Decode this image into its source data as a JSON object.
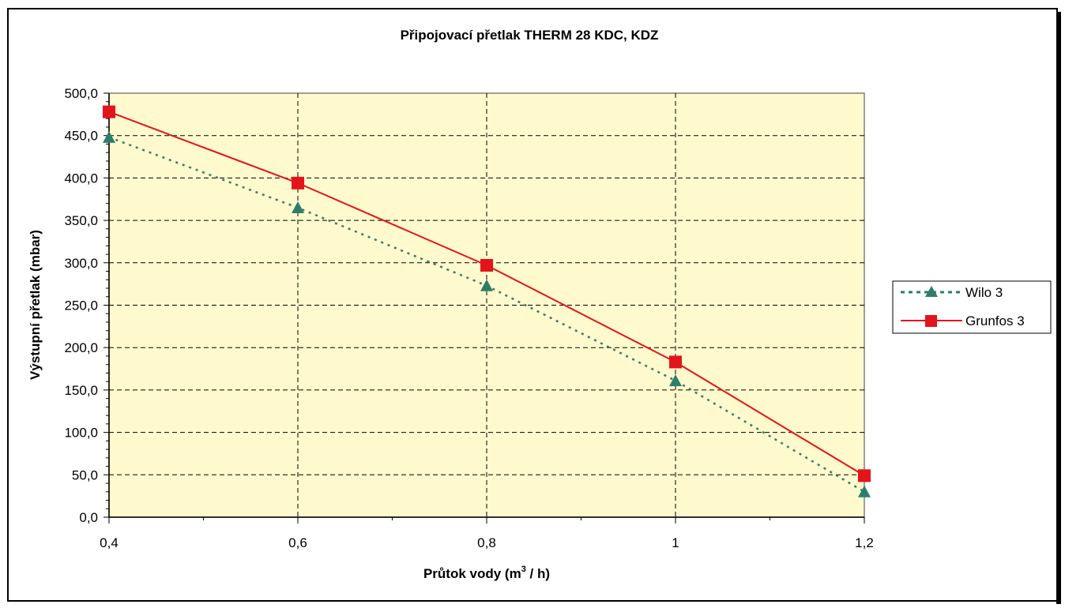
{
  "chart_data": {
    "type": "line",
    "title": "Připojovací přetlak THERM 28 KDC, KDZ",
    "xlabel_main": "Průtok vody (m",
    "xlabel_sup": "3",
    "xlabel_tail": " / h)",
    "ylabel": "Výstupní přetlak (mbar)",
    "x": [
      0.4,
      0.6,
      0.8,
      1.0,
      1.2
    ],
    "x_tick_labels": [
      "0,4",
      "0,6",
      "0,8",
      "1",
      "1,2"
    ],
    "xlim": [
      0.4,
      1.2
    ],
    "ylim": [
      0,
      500
    ],
    "y_tick_labels": [
      "0,0",
      "50,0",
      "100,0",
      "150,0",
      "200,0",
      "250,0",
      "300,0",
      "350,0",
      "400,0",
      "450,0",
      "500,0"
    ],
    "grid": true,
    "legend_position": "right",
    "plot_background": "#FFFACD",
    "series": [
      {
        "name": "Wilo 3",
        "values": [
          448,
          365,
          273,
          161,
          30
        ],
        "color": "#2E7D6B",
        "marker": "triangle",
        "line_style": "dotted"
      },
      {
        "name": "Grunfos 3",
        "values": [
          478,
          394,
          297,
          183,
          49
        ],
        "color": "#E3141B",
        "marker": "square",
        "line_style": "solid"
      }
    ]
  }
}
